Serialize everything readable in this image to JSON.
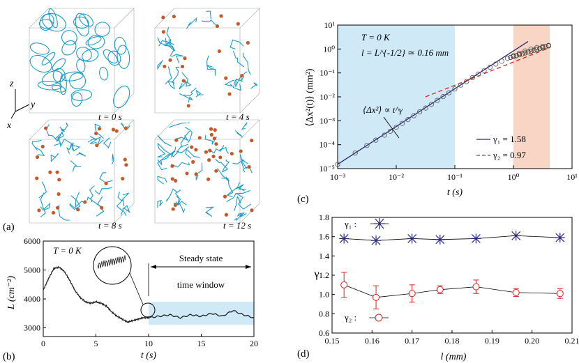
{
  "panel_a": {
    "label": "(a)",
    "axes": {
      "z": "z",
      "y": "y",
      "x": "x"
    },
    "snapshots": [
      {
        "time_label": "t = 0 s"
      },
      {
        "time_label": "t = 4 s"
      },
      {
        "time_label": "t = 8 s"
      },
      {
        "time_label": "t = 12 s"
      }
    ]
  },
  "panel_b": {
    "label": "(b)",
    "temp_label": "T = 0 K",
    "steady_line1": "Steady state",
    "steady_line2": "time window"
  },
  "panel_c": {
    "label": "(c)",
    "temp_label": "T = 0 K",
    "l_label": "l = L^{-1/2} ≃ 0.16 mm",
    "fit_label": "⟨Δx²⟩ ∝ t^γ",
    "legend_g1": "γ₁ = 1.58",
    "legend_g2": "γ₂ = 0.97"
  },
  "panel_d": {
    "label": "(d)",
    "g1_label": "γ₁ :",
    "g2_label": "γ₂ :"
  },
  "colors": {
    "blue_region": "#cfe9f7",
    "orange_region": "#f8d5c4",
    "vortex": "#1a9bc9",
    "dot": "#c45a2a",
    "g1": "#28287f",
    "g2": "#d9231f"
  },
  "chart_data": [
    {
      "type": "line",
      "panel": "b",
      "title": "",
      "xlabel": "t (s)",
      "ylabel": "L (cm⁻²)",
      "xlim": [
        0,
        20
      ],
      "ylim": [
        2700,
        6000
      ],
      "xticks": [
        0,
        5,
        10,
        15,
        20
      ],
      "yticks": [
        3000,
        4000,
        5000,
        6000
      ],
      "highlight_window": [
        10,
        20
      ],
      "series": [
        {
          "name": "L(t)",
          "x": [
            0,
            0.5,
            1,
            1.5,
            2,
            2.5,
            3,
            3.5,
            4,
            4.5,
            5,
            5.5,
            6,
            6.5,
            7,
            7.5,
            8,
            8.5,
            9,
            9.5,
            10,
            11,
            12,
            13,
            14,
            15,
            16,
            17,
            18,
            19,
            20
          ],
          "y": [
            4300,
            4700,
            5050,
            5100,
            4950,
            4650,
            4300,
            4050,
            3900,
            3850,
            3900,
            3850,
            3750,
            3550,
            3400,
            3300,
            3200,
            3250,
            3300,
            3350,
            3350,
            3400,
            3450,
            3350,
            3450,
            3400,
            3500,
            3400,
            3600,
            3450,
            3350
          ]
        }
      ]
    },
    {
      "type": "scatter",
      "panel": "c",
      "xlabel": "t (s)",
      "ylabel": "⟨Δx²(t)⟩ (mm²)",
      "xscale": "log",
      "yscale": "log",
      "xlim_exp": [
        -3,
        1
      ],
      "ylim_exp": [
        -5,
        1
      ],
      "xtick_labels": [
        "10⁻³",
        "10⁻²",
        "10⁻¹",
        "10⁰",
        "10¹"
      ],
      "ytick_labels": [
        "10⁻⁵",
        "10⁻⁴",
        "10⁻³",
        "10⁻²",
        "10⁻¹",
        "10⁰",
        "10¹"
      ],
      "regions_exp": [
        [
          -3,
          -1
        ],
        [
          0,
          0.62
        ]
      ],
      "fits": [
        {
          "name": "γ₁",
          "slope": 1.58,
          "x_exp": [
            -3,
            0.25
          ],
          "y_start_exp": -4.82
        },
        {
          "name": "γ₂",
          "slope": 0.97,
          "x_exp": [
            -1.5,
            0.62
          ],
          "y_start_exp": -2.0
        }
      ],
      "points": {
        "x_exp": [
          -3,
          -2.7,
          -2.5,
          -2.35,
          -2.2,
          -2.1,
          -2.0,
          -1.9,
          -1.8,
          -1.7,
          -1.6,
          -1.5,
          -1.4,
          -1.3,
          -1.2,
          -1.1,
          -1.0,
          -0.9,
          -0.8,
          -0.7,
          -0.6,
          -0.5,
          -0.4,
          -0.3,
          -0.2,
          -0.1,
          0.0,
          0.1,
          0.2,
          0.3,
          0.4,
          0.5,
          0.6
        ],
        "y_exp": [
          -4.82,
          -4.35,
          -4.03,
          -3.81,
          -3.6,
          -3.44,
          -3.27,
          -3.11,
          -2.95,
          -2.79,
          -2.63,
          -2.47,
          -2.31,
          -2.15,
          -1.99,
          -1.83,
          -1.67,
          -1.51,
          -1.36,
          -1.2,
          -1.05,
          -0.9,
          -0.76,
          -0.63,
          -0.51,
          -0.39,
          -0.28,
          -0.18,
          -0.08,
          0.0,
          0.06,
          0.11,
          0.15
        ]
      }
    },
    {
      "type": "scatter",
      "panel": "d",
      "xlabel": "l (mm)",
      "ylabel": "γ",
      "xlim": [
        0.15,
        0.21
      ],
      "ylim": [
        0.6,
        1.8
      ],
      "xticks": [
        0.15,
        0.16,
        0.17,
        0.18,
        0.19,
        0.2,
        0.21
      ],
      "yticks": [
        0.6,
        0.8,
        1.0,
        1.2,
        1.4,
        1.6,
        1.8
      ],
      "x": [
        0.153,
        0.161,
        0.17,
        0.177,
        0.186,
        0.196,
        0.207
      ],
      "series": [
        {
          "name": "γ₁",
          "values": [
            1.58,
            1.56,
            1.58,
            1.57,
            1.58,
            1.61,
            1.59
          ]
        },
        {
          "name": "γ₂",
          "values": [
            1.1,
            0.97,
            1.01,
            1.05,
            1.08,
            1.02,
            1.01
          ],
          "errors": [
            0.13,
            0.12,
            0.09,
            0.04,
            0.07,
            0.04,
            0.05
          ]
        }
      ]
    }
  ]
}
